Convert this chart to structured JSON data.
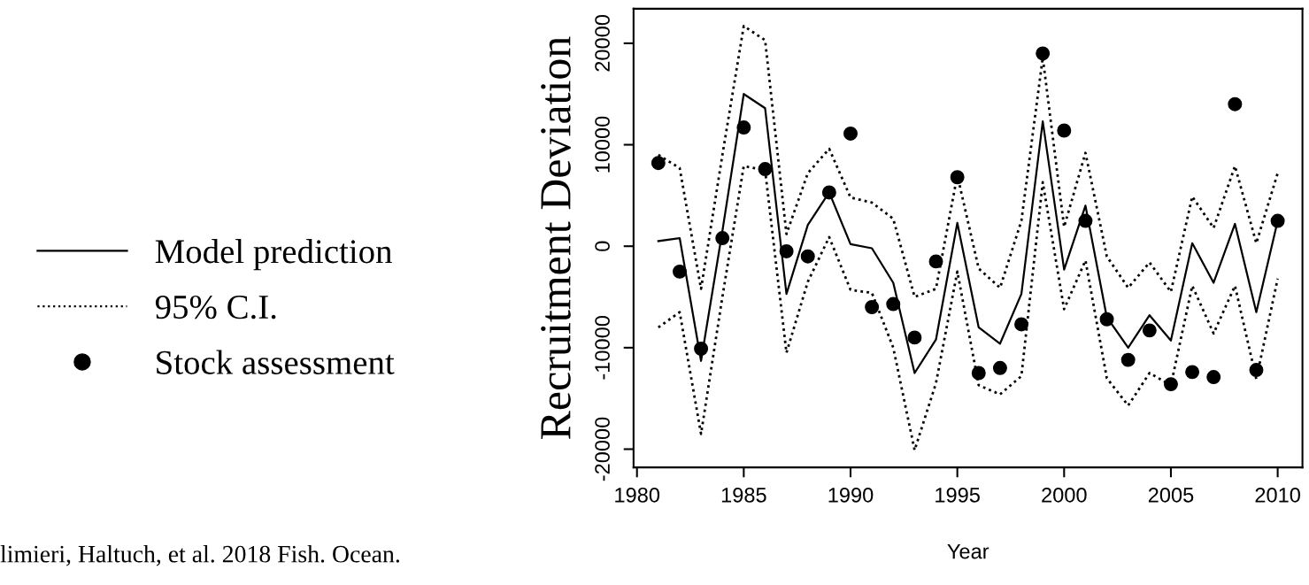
{
  "chart_data": {
    "type": "line",
    "xlabel": "Year",
    "ylabel": "Recruitment Deviation",
    "x": [
      1981,
      1982,
      1983,
      1984,
      1985,
      1986,
      1987,
      1988,
      1989,
      1990,
      1991,
      1992,
      1993,
      1994,
      1995,
      1996,
      1997,
      1998,
      1999,
      2000,
      2001,
      2002,
      2003,
      2004,
      2005,
      2006,
      2007,
      2008,
      2009,
      2010
    ],
    "series": [
      {
        "name": "Model prediction",
        "line_style": "solid",
        "color": "#000000",
        "values": [
          500,
          800,
          -11300,
          1500,
          15000,
          13600,
          -4700,
          2100,
          5300,
          200,
          -200,
          -3600,
          -12500,
          -9200,
          2300,
          -8000,
          -9600,
          -4700,
          12300,
          -2300,
          4000,
          -7000,
          -10000,
          -6800,
          -9300,
          300,
          -3600,
          2200,
          -6500,
          2500
        ]
      },
      {
        "name": "95% C.I.",
        "line_style": "dotted",
        "color": "#000000",
        "values": [
          9000,
          7700,
          -4200,
          9000,
          21700,
          20300,
          1200,
          7200,
          9600,
          4800,
          4300,
          2700,
          -5000,
          -4200,
          7000,
          -2200,
          -4100,
          2500,
          18600,
          1900,
          9200,
          -1000,
          -4100,
          -1600,
          -4500,
          4900,
          1800,
          7900,
          300,
          7200
        ]
      },
      {
        "line_style": "dotted",
        "color": "#000000",
        "values": [
          -8000,
          -6500,
          -18500,
          -5000,
          7900,
          7500,
          -10500,
          -3500,
          900,
          -4300,
          -4600,
          -10000,
          -20100,
          -13500,
          -2500,
          -13700,
          -14600,
          -12800,
          6300,
          -6200,
          -1400,
          -13000,
          -15700,
          -12500,
          -13700,
          -3900,
          -8600,
          -3900,
          -13100,
          -3200
        ]
      },
      {
        "name": "Stock assessment",
        "type": "scatter",
        "marker": "circle",
        "color": "#000000",
        "values": [
          8200,
          -2500,
          -10100,
          800,
          11700,
          7600,
          -500,
          -1000,
          5300,
          11100,
          -6000,
          -5700,
          -9000,
          -1500,
          6800,
          -12500,
          -12000,
          -7700,
          19000,
          11400,
          2500,
          -7200,
          -11200,
          -8300,
          -13600,
          -12400,
          -12900,
          14000,
          -12200,
          2500
        ]
      }
    ],
    "xlim": [
      1979.84,
      2011.16
    ],
    "ylim": [
      -21800,
      23400
    ],
    "xticks": [
      1980,
      1985,
      1990,
      1995,
      2000,
      2005,
      2010
    ],
    "yticks": [
      -20000,
      -10000,
      0,
      10000,
      20000
    ],
    "grid": false,
    "legend": "left",
    "annotations": [
      "limieri, Haltuch, et al. 2018 Fish. Ocean."
    ]
  }
}
